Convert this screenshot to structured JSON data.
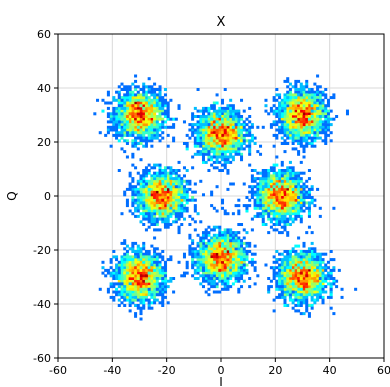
{
  "chart_data": {
    "type": "heatmap",
    "title": "X",
    "xlabel": "I",
    "ylabel": "Q",
    "xlim": [
      -60,
      60
    ],
    "ylim": [
      -60,
      60
    ],
    "xticks": [
      -60,
      -40,
      -20,
      0,
      20,
      40,
      60
    ],
    "yticks": [
      -60,
      -40,
      -20,
      0,
      20,
      40,
      60
    ],
    "grid": true,
    "colormap": "jet",
    "clusters": [
      {
        "x": -30,
        "y": 30,
        "spread": 4.5
      },
      {
        "x": 0,
        "y": 23,
        "spread": 4.5
      },
      {
        "x": 30,
        "y": 30,
        "spread": 4.5
      },
      {
        "x": -22,
        "y": 0,
        "spread": 4.5
      },
      {
        "x": 22,
        "y": 0,
        "spread": 4.5
      },
      {
        "x": -30,
        "y": -30,
        "spread": 4.5
      },
      {
        "x": 0,
        "y": -23,
        "spread": 4.5
      },
      {
        "x": 30,
        "y": -30,
        "spread": 4.5
      }
    ]
  }
}
